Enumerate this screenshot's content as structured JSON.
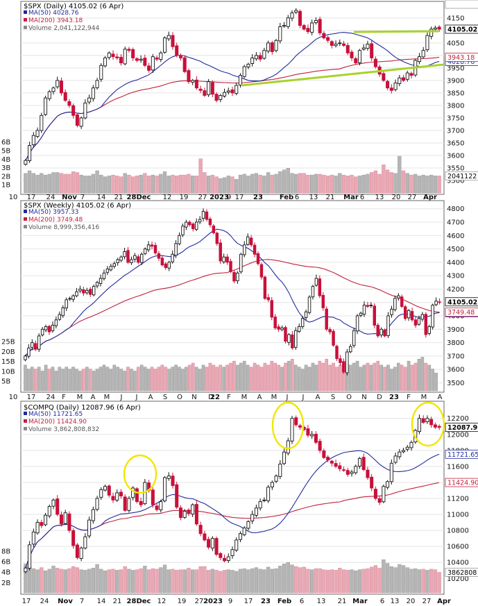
{
  "chart_data": [
    {
      "type": "candlestick",
      "title": "$SPX (Daily) 4105.02 (6 Apr)",
      "legend": [
        {
          "label": "MA(50) 4028.76",
          "color": "#1f2a9c"
        },
        {
          "label": "MA(200) 3943.18",
          "color": "#c0203c"
        },
        {
          "label": "Volume 2,041,122,944",
          "color": "#888888"
        }
      ],
      "ylim": [
        3450,
        4205
      ],
      "y_ticks": [
        "4150",
        "4100",
        "4050",
        "4000",
        "3950",
        "3900",
        "3850",
        "3800",
        "3750",
        "3700",
        "3650",
        "3600",
        "3550",
        "3500"
      ],
      "vol_ticks": [
        "6B",
        "5B",
        "4B",
        "3B",
        "2B",
        "1B"
      ],
      "x_ticks": [
        "10",
        "17",
        "24",
        "Nov",
        "7",
        "14",
        "21",
        "28Dec",
        "12",
        "19",
        "27",
        "2023",
        "9",
        "17",
        "23",
        "Feb",
        "6",
        "13",
        "21",
        "Mar",
        "6",
        "13",
        "20",
        "27",
        "Apr"
      ],
      "price_label": "4105.02",
      "ma50_label": "4028.76",
      "ma200_label": "3943.18",
      "vol_label": "2041122",
      "closes": [
        3580,
        3640,
        3680,
        3700,
        3760,
        3830,
        3855,
        3870,
        3900,
        3850,
        3820,
        3800,
        3760,
        3720,
        3750,
        3810,
        3830,
        3870,
        3900,
        3960,
        3990,
        4010,
        3995,
        3990,
        3970,
        4025,
        4020,
        3990,
        3980,
        3985,
        3960,
        3940,
        3995,
        3985,
        4010,
        4070,
        4080,
        4035,
        4000,
        3990,
        3935,
        3895,
        3900,
        3870,
        3860,
        3840,
        3895,
        3845,
        3820,
        3840,
        3852,
        3858,
        3850,
        3880,
        3920,
        3955,
        3965,
        3990,
        4000,
        3985,
        4020,
        4050,
        4015,
        4060,
        4115,
        4120,
        4150,
        4170,
        4180,
        4120,
        4105,
        4095,
        4130,
        4140,
        4090,
        4070,
        4060,
        4040,
        4045,
        4050,
        4040,
        4010,
        3990,
        3970,
        4020,
        4030,
        4045,
        3990,
        3955,
        3925,
        3900,
        3870,
        3860,
        3890,
        3910,
        3900,
        3930,
        3920,
        3980,
        3995,
        4020,
        4080,
        4105,
        4110,
        4105
      ],
      "volumes": [
        2.3,
        2.6,
        2.3,
        2.1,
        2.3,
        2.1,
        2.2,
        2.4,
        2.4,
        2.3,
        2.2,
        2.2,
        2.5,
        2.4,
        2.1,
        2.0,
        2.0,
        2.2,
        2.6,
        2.1,
        1.9,
        2.0,
        2.1,
        2.0,
        1.9,
        2.3,
        2.1,
        1.9,
        2.0,
        2.1,
        2.3,
        2.0,
        2.1,
        2.0,
        2.2,
        2.5,
        2.0,
        2.1,
        2.0,
        2.1,
        2.1,
        2.2,
        2.0,
        2.0,
        4.0,
        2.4,
        2.0,
        2.1,
        1.9,
        1.7,
        1.8,
        2.0,
        1.9,
        1.6,
        2.1,
        2.2,
        2.0,
        2.2,
        2.3,
        2.1,
        2.0,
        2.4,
        2.1,
        2.2,
        2.5,
        2.7,
        2.9,
        2.3,
        2.2,
        2.3,
        2.3,
        2.1,
        2.1,
        2.2,
        2.2,
        2.1,
        2.0,
        2.1,
        2.0,
        2.3,
        2.1,
        2.0,
        2.1,
        1.9,
        2.0,
        2.1,
        2.2,
        2.4,
        2.6,
        2.2,
        3.3,
        2.7,
        2.4,
        2.3,
        4.3,
        2.6,
        2.3,
        2.1,
        2.2,
        2.0,
        2.1,
        2.0,
        2.1,
        2.0,
        2.0
      ]
    },
    {
      "type": "candlestick",
      "title": "$SPX (Weekly) 4105.02 (6 Apr)",
      "legend": [
        {
          "label": "MA(50) 3957.33",
          "color": "#1f2a9c"
        },
        {
          "label": "MA(200) 3749.48",
          "color": "#c0203c"
        },
        {
          "label": "Volume 8,999,356,416",
          "color": "#888888"
        }
      ],
      "ylim": [
        3440,
        4840
      ],
      "y_ticks": [
        "4800",
        "4700",
        "4600",
        "4500",
        "4400",
        "4300",
        "4200",
        "4100",
        "4000",
        "3900",
        "3800",
        "3700",
        "3600",
        "3500"
      ],
      "vol_ticks": [
        "25B",
        "20B",
        "15B",
        "10B",
        "5B"
      ],
      "x_ticks": [
        "10",
        "17",
        "24",
        "F",
        "M",
        "A",
        "M",
        "J",
        "J",
        "A",
        "S",
        "O",
        "N",
        "D",
        "22",
        "F",
        "M",
        "A",
        "M",
        "J",
        "J",
        "A",
        "S",
        "O",
        "N",
        "D",
        "23",
        "F",
        "M",
        "A"
      ],
      "price_label": "4105.02",
      "ma50_label": "3957.33",
      "ma200_label": "3749.48",
      "vol_label": "8999356",
      "closes": [
        3700,
        3760,
        3800,
        3750,
        3850,
        3900,
        3920,
        3880,
        3930,
        3970,
        4010,
        4060,
        4120,
        4130,
        4150,
        4180,
        4200,
        4170,
        4190,
        4160,
        4220,
        4250,
        4280,
        4320,
        4350,
        4370,
        4390,
        4420,
        4440,
        4480,
        4400,
        4420,
        4450,
        4400,
        4460,
        4500,
        4530,
        4520,
        4470,
        4430,
        4380,
        4360,
        4400,
        4460,
        4540,
        4600,
        4670,
        4700,
        4680,
        4650,
        4700,
        4720,
        4780,
        4720,
        4680,
        4620,
        4540,
        4410,
        4440,
        4400,
        4330,
        4260,
        4320,
        4460,
        4530,
        4590,
        4530,
        4460,
        4390,
        4290,
        4130,
        4120,
        3990,
        3910,
        3900,
        3910,
        3810,
        3860,
        3760,
        3890,
        3920,
        3980,
        4030,
        4140,
        4220,
        4280,
        4150,
        4060,
        3900,
        3880,
        3780,
        3680,
        3650,
        3580,
        3730,
        3770,
        3890,
        4000,
        4020,
        4080,
        4070,
        4080,
        3930,
        3850,
        3900,
        3850,
        4000,
        4050,
        4130,
        4150,
        4070,
        3980,
        4040,
        3970,
        3930,
        3980,
        4010,
        3860,
        3920,
        4080,
        4110,
        4105
      ],
      "volumes": [
        13,
        11,
        12,
        11,
        12,
        10,
        13,
        11,
        12,
        10,
        12,
        11,
        12,
        11,
        12,
        11,
        10,
        11,
        12,
        11,
        10,
        11,
        12,
        13,
        12,
        11,
        13,
        12,
        11,
        10,
        12,
        11,
        10,
        12,
        13,
        12,
        11,
        12,
        11,
        12,
        13,
        12,
        11,
        12,
        13,
        12,
        11,
        12,
        13,
        14,
        12,
        11,
        13,
        12,
        14,
        13,
        12,
        13,
        12,
        13,
        14,
        15,
        13,
        14,
        15,
        13,
        12,
        14,
        13,
        12,
        14,
        13,
        15,
        14,
        13,
        12,
        14,
        15,
        16,
        13,
        12,
        11,
        13,
        12,
        14,
        13,
        15,
        14,
        16,
        13,
        14,
        12,
        13,
        15,
        14,
        13,
        14,
        15,
        12,
        13,
        14,
        13,
        14,
        15,
        13,
        12,
        13,
        11,
        12,
        14,
        13,
        12,
        15,
        13,
        14,
        16,
        17,
        14,
        13,
        11,
        9
      ]
    },
    {
      "type": "candlestick",
      "title": "$COMPQ (Daily) 12087.96 (6 Apr)",
      "legend": [
        {
          "label": "MA(50) 11721.65",
          "color": "#1f2a9c"
        },
        {
          "label": "MA(200) 11424.90",
          "color": "#c0203c"
        },
        {
          "label": "Volume 3,862,808,832",
          "color": "#888888"
        }
      ],
      "ylim": [
        10020,
        12380
      ],
      "y_ticks": [
        "12200",
        "12000",
        "11800",
        "11600",
        "11400",
        "11200",
        "11000",
        "10800",
        "10600",
        "10400",
        "10200"
      ],
      "vol_ticks": [
        "8B",
        "6B",
        "4B",
        "2B"
      ],
      "x_ticks": [
        "17",
        "24",
        "Nov",
        "7",
        "14",
        "21",
        "28Dec",
        "12",
        "19",
        "27",
        "2023",
        "9",
        "17",
        "23",
        "Feb",
        "6",
        "13",
        "21",
        "Mar",
        "6",
        "13",
        "20",
        "27",
        "Apr"
      ],
      "price_label": "12087.96",
      "ma50_label": "11721.65",
      "ma200_label": "11424.90",
      "vol_label": "3862808",
      "closes": [
        10330,
        10620,
        10780,
        10900,
        10860,
        10990,
        11100,
        11180,
        11000,
        10880,
        11020,
        10800,
        10610,
        10460,
        10580,
        10720,
        10930,
        11060,
        11200,
        11310,
        11350,
        11240,
        11180,
        11270,
        11230,
        11050,
        11200,
        11330,
        11160,
        11120,
        11400,
        11300,
        11120,
        11060,
        11160,
        11460,
        11480,
        11360,
        11090,
        10960,
        11040,
        11010,
        11120,
        10880,
        10760,
        10680,
        10590,
        10700,
        10500,
        10460,
        10420,
        10470,
        10560,
        10680,
        10760,
        10830,
        10910,
        11000,
        11080,
        11160,
        11180,
        11340,
        11400,
        11480,
        11630,
        11780,
        11920,
        12200,
        12120,
        12090,
        12060,
        11990,
        12000,
        11900,
        11800,
        11710,
        11680,
        11640,
        11600,
        11570,
        11550,
        11500,
        11530,
        11600,
        11700,
        11560,
        11460,
        11330,
        11200,
        11150,
        11350,
        11410,
        11640,
        11730,
        11780,
        11800,
        11840,
        11900,
        12050,
        12200,
        12150,
        12200,
        12120,
        12090,
        12088
      ],
      "volumes": [
        5.5,
        5.0,
        4.6,
        4.4,
        4.8,
        4.2,
        4.5,
        5.1,
        4.7,
        4.5,
        4.4,
        4.6,
        5.0,
        4.8,
        4.4,
        4.3,
        4.5,
        4.7,
        5.4,
        4.5,
        4.2,
        4.4,
        4.5,
        4.3,
        4.4,
        5.0,
        4.5,
        4.3,
        4.4,
        4.6,
        5.1,
        4.4,
        4.6,
        4.5,
        4.8,
        5.3,
        4.4,
        4.5,
        4.3,
        4.4,
        4.4,
        4.7,
        4.4,
        4.4,
        5.0,
        5.0,
        4.3,
        4.5,
        4.3,
        4.1,
        4.3,
        4.4,
        4.3,
        4.1,
        4.5,
        4.6,
        4.4,
        4.6,
        4.8,
        4.5,
        4.4,
        4.9,
        4.5,
        4.6,
        5.1,
        5.5,
        5.8,
        5.3,
        5.0,
        4.8,
        4.9,
        4.5,
        4.4,
        4.6,
        4.6,
        4.4,
        4.3,
        4.4,
        4.3,
        4.7,
        4.4,
        4.3,
        4.4,
        4.2,
        4.4,
        4.5,
        4.6,
        4.9,
        5.2,
        4.7,
        6.3,
        5.6,
        5.0,
        4.8,
        5.4,
        5.2,
        4.8,
        4.5,
        4.6,
        4.4,
        4.5,
        4.3,
        4.5,
        4.4,
        3.9
      ]
    }
  ]
}
